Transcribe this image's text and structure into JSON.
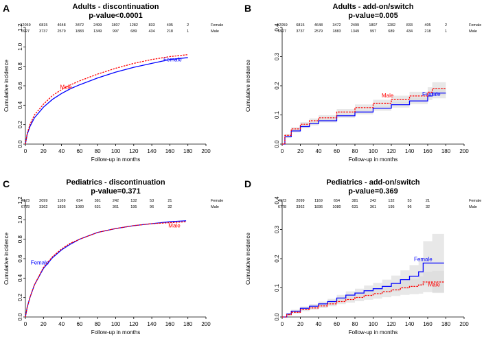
{
  "chart_data": [
    {
      "panel": "A",
      "type": "line",
      "title": "Adults - discontinuation",
      "subtitle": "p-value<0.0001",
      "xlabel": "Follow-up in months",
      "ylabel": "Cumulative incidence",
      "xlim": [
        0,
        200
      ],
      "ylim": [
        0,
        1.2
      ],
      "xticks": [
        "0",
        "20",
        "40",
        "60",
        "80",
        "100",
        "120",
        "140",
        "160",
        "180",
        "200"
      ],
      "yticks": [
        "0.0",
        "0.2",
        "0.4",
        "0.6",
        "0.8",
        "1.0",
        "1.2"
      ],
      "risk_table": [
        {
          "name": "Female",
          "values": [
            "12059",
            "6815",
            "4648",
            "3472",
            "2499",
            "1807",
            "1282",
            "833",
            "405",
            "2"
          ]
        },
        {
          "name": "Male",
          "values": [
            "6927",
            "3737",
            "2579",
            "1883",
            "1349",
            "997",
            "689",
            "434",
            "218",
            "1"
          ]
        }
      ],
      "series": [
        {
          "name": "Female",
          "label": "Female",
          "color": "#0000ff",
          "style": "solid",
          "band": false,
          "x": [
            0,
            2,
            5,
            10,
            20,
            30,
            40,
            50,
            60,
            80,
            100,
            120,
            140,
            160,
            180
          ],
          "y": [
            0,
            0.1,
            0.18,
            0.27,
            0.38,
            0.46,
            0.52,
            0.57,
            0.61,
            0.68,
            0.74,
            0.79,
            0.83,
            0.87,
            0.89
          ],
          "label_pos": [
            163,
            0.85
          ]
        },
        {
          "name": "Male",
          "label": "Male",
          "color": "#ff0000",
          "style": "dashed",
          "band": false,
          "x": [
            0,
            2,
            5,
            10,
            20,
            30,
            40,
            50,
            60,
            80,
            100,
            120,
            140,
            160,
            180
          ],
          "y": [
            0,
            0.11,
            0.2,
            0.3,
            0.41,
            0.5,
            0.56,
            0.61,
            0.65,
            0.72,
            0.78,
            0.83,
            0.87,
            0.9,
            0.92
          ],
          "label_pos": [
            45,
            0.57
          ]
        }
      ]
    },
    {
      "panel": "B",
      "type": "line",
      "title": "Adults - add-on/switch",
      "subtitle": "p-value=0.005",
      "xlabel": "Follow-up in months",
      "ylabel": "Cumulative incidence",
      "xlim": [
        0,
        200
      ],
      "ylim": [
        0,
        0.4
      ],
      "xticks": [
        "0",
        "20",
        "40",
        "60",
        "80",
        "100",
        "120",
        "140",
        "160",
        "180",
        "200"
      ],
      "yticks": [
        "0.0",
        "0.1",
        "0.2",
        "0.3",
        "0.4"
      ],
      "risk_table": [
        {
          "name": "Female",
          "values": [
            "12059",
            "6815",
            "4648",
            "3472",
            "2499",
            "1807",
            "1282",
            "833",
            "405",
            "2"
          ]
        },
        {
          "name": "Male",
          "values": [
            "6927",
            "3737",
            "2579",
            "1883",
            "1349",
            "997",
            "689",
            "434",
            "218",
            "1"
          ]
        }
      ],
      "series": [
        {
          "name": "Female",
          "label": "Female",
          "color": "#0000ff",
          "style": "solid",
          "band": true,
          "x": [
            0,
            3,
            10,
            20,
            30,
            40,
            60,
            80,
            100,
            120,
            140,
            160,
            165,
            180
          ],
          "y": [
            0,
            0.025,
            0.045,
            0.06,
            0.07,
            0.08,
            0.097,
            0.11,
            0.123,
            0.135,
            0.148,
            0.165,
            0.175,
            0.175
          ],
          "band_width": [
            0,
            0.004,
            0.005,
            0.005,
            0.006,
            0.006,
            0.007,
            0.008,
            0.009,
            0.01,
            0.011,
            0.014,
            0.018,
            0.02
          ],
          "label_pos": [
            164,
            0.165
          ]
        },
        {
          "name": "Male",
          "label": "Male",
          "color": "#ff0000",
          "style": "dashed",
          "band": true,
          "x": [
            0,
            3,
            10,
            20,
            30,
            40,
            60,
            80,
            100,
            120,
            140,
            160,
            165,
            180
          ],
          "y": [
            0,
            0.03,
            0.052,
            0.068,
            0.08,
            0.09,
            0.11,
            0.125,
            0.14,
            0.153,
            0.165,
            0.178,
            0.19,
            0.19
          ],
          "band_width": [
            0,
            0.005,
            0.006,
            0.007,
            0.008,
            0.009,
            0.01,
            0.011,
            0.012,
            0.013,
            0.014,
            0.017,
            0.022,
            0.025
          ],
          "label_pos": [
            116,
            0.16
          ]
        }
      ]
    },
    {
      "panel": "C",
      "type": "line",
      "title": "Pediatrics - discontinuation",
      "subtitle": "p-value=0.371",
      "xlabel": "Follow-up in months",
      "ylabel": "Cumulative incidence",
      "xlim": [
        0,
        200
      ],
      "ylim": [
        0,
        1.2
      ],
      "xticks": [
        "0",
        "20",
        "40",
        "60",
        "80",
        "100",
        "120",
        "140",
        "160",
        "180",
        "200"
      ],
      "yticks": [
        "0.0",
        "0.2",
        "0.4",
        "0.6",
        "0.8",
        "1.0",
        "1.2"
      ],
      "risk_table": [
        {
          "name": "Female",
          "values": [
            "4173",
            "2099",
            "1169",
            "654",
            "381",
            "242",
            "132",
            "53",
            "21"
          ]
        },
        {
          "name": "Male",
          "values": [
            "6778",
            "3362",
            "1836",
            "1080",
            "631",
            "361",
            "195",
            "96",
            "32"
          ]
        }
      ],
      "series": [
        {
          "name": "Female",
          "label": "Female",
          "color": "#0000ff",
          "style": "solid",
          "band": false,
          "x": [
            0,
            2,
            5,
            10,
            20,
            30,
            40,
            50,
            60,
            80,
            100,
            120,
            140,
            160,
            178
          ],
          "y": [
            0,
            0.1,
            0.2,
            0.33,
            0.5,
            0.61,
            0.69,
            0.75,
            0.8,
            0.87,
            0.91,
            0.94,
            0.96,
            0.98,
            0.99
          ],
          "label_pos": [
            16,
            0.54
          ]
        },
        {
          "name": "Male",
          "label": "Male",
          "color": "#ff0000",
          "style": "dashed",
          "band": false,
          "x": [
            0,
            2,
            5,
            10,
            20,
            30,
            40,
            50,
            60,
            80,
            100,
            120,
            140,
            160,
            178
          ],
          "y": [
            0,
            0.1,
            0.2,
            0.33,
            0.51,
            0.62,
            0.7,
            0.76,
            0.8,
            0.87,
            0.91,
            0.94,
            0.96,
            0.97,
            0.98
          ],
          "label_pos": [
            165,
            0.92
          ]
        }
      ]
    },
    {
      "panel": "D",
      "type": "line",
      "title": "Pediatrics - add-on/switch",
      "subtitle": "p-value=0.369",
      "xlabel": "Follow-up in months",
      "ylabel": "Cumulative incidence",
      "xlim": [
        0,
        200
      ],
      "ylim": [
        0,
        0.4
      ],
      "xticks": [
        "0",
        "20",
        "40",
        "60",
        "80",
        "100",
        "120",
        "140",
        "160",
        "180",
        "200"
      ],
      "yticks": [
        "0.0",
        "0.1",
        "0.2",
        "0.3",
        "0.4"
      ],
      "risk_table": [
        {
          "name": "Female",
          "values": [
            "4173",
            "2099",
            "1169",
            "654",
            "381",
            "242",
            "132",
            "53",
            "21"
          ]
        },
        {
          "name": "Male",
          "values": [
            "6778",
            "3362",
            "1836",
            "1080",
            "631",
            "361",
            "195",
            "96",
            "32"
          ]
        }
      ],
      "series": [
        {
          "name": "Female",
          "label": "Female",
          "color": "#0000ff",
          "style": "solid",
          "band": true,
          "x": [
            0,
            5,
            10,
            20,
            30,
            40,
            50,
            60,
            70,
            80,
            90,
            100,
            110,
            120,
            130,
            140,
            150,
            155,
            165,
            178
          ],
          "y": [
            0,
            0.01,
            0.02,
            0.03,
            0.037,
            0.045,
            0.053,
            0.065,
            0.075,
            0.082,
            0.09,
            0.097,
            0.105,
            0.115,
            0.128,
            0.14,
            0.155,
            0.185,
            0.185,
            0.185
          ],
          "band_width": [
            0,
            0.004,
            0.005,
            0.006,
            0.007,
            0.008,
            0.009,
            0.011,
            0.013,
            0.015,
            0.018,
            0.02,
            0.023,
            0.027,
            0.032,
            0.038,
            0.048,
            0.075,
            0.1,
            0.1
          ],
          "label_pos": [
            155,
            0.192
          ]
        },
        {
          "name": "Male",
          "label": "Male",
          "color": "#ff0000",
          "style": "dashed",
          "band": true,
          "x": [
            0,
            5,
            10,
            20,
            30,
            40,
            50,
            60,
            70,
            80,
            90,
            100,
            110,
            120,
            130,
            140,
            150,
            155,
            165,
            178
          ],
          "y": [
            0,
            0.008,
            0.016,
            0.025,
            0.031,
            0.038,
            0.045,
            0.053,
            0.06,
            0.067,
            0.074,
            0.08,
            0.087,
            0.093,
            0.1,
            0.105,
            0.11,
            0.12,
            0.12,
            0.12
          ],
          "band_width": [
            0,
            0.003,
            0.004,
            0.005,
            0.006,
            0.007,
            0.008,
            0.009,
            0.011,
            0.013,
            0.015,
            0.017,
            0.019,
            0.021,
            0.024,
            0.027,
            0.03,
            0.035,
            0.038,
            0.04
          ],
          "label_pos": [
            167,
            0.105
          ]
        }
      ]
    }
  ]
}
